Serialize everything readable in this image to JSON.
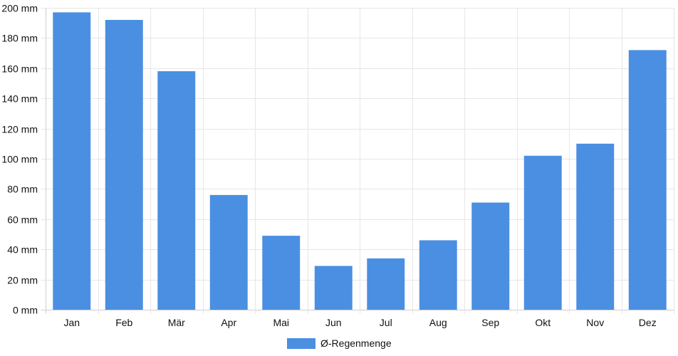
{
  "chart_data": {
    "type": "bar",
    "categories": [
      "Jan",
      "Feb",
      "Mär",
      "Apr",
      "Mai",
      "Jun",
      "Jul",
      "Aug",
      "Sep",
      "Okt",
      "Nov",
      "Dez"
    ],
    "series": [
      {
        "name": "Ø-Regenmenge",
        "values": [
          197,
          192,
          158,
          76,
          49,
          29,
          34,
          46,
          71,
          102,
          110,
          172
        ],
        "color": "#4a8fe1"
      }
    ],
    "y_unit": "mm",
    "y_ticks": [
      "0 mm",
      "20 mm",
      "40 mm",
      "60 mm",
      "80 mm",
      "100 mm",
      "120 mm",
      "140 mm",
      "160 mm",
      "180 mm",
      "200 mm"
    ],
    "ylim": [
      0,
      200
    ],
    "grid": true,
    "legend_position": "bottom"
  }
}
